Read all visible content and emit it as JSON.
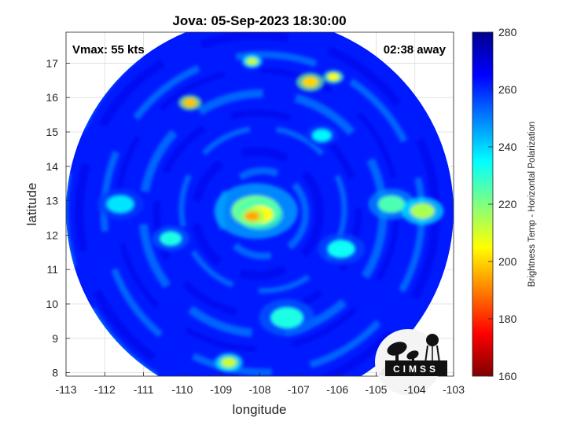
{
  "chart_data": {
    "type": "heatmap",
    "title": "Jova: 05-Sep-2023 18:30:00",
    "xlabel": "longitude",
    "ylabel": "latitude",
    "xlim": [
      -113,
      -103
    ],
    "ylim": [
      7.9,
      17.9
    ],
    "xticks": [
      -113,
      -112,
      -111,
      -110,
      -109,
      -108,
      -107,
      -106,
      -105,
      -104,
      -103
    ],
    "yticks": [
      8,
      9,
      10,
      11,
      12,
      13,
      14,
      15,
      16,
      17
    ],
    "grid": true,
    "colorbar": {
      "label": "Brightness Temp - Horizontal Polarization",
      "range": [
        160,
        280
      ],
      "ticks": [
        160,
        180,
        200,
        220,
        240,
        260,
        280
      ],
      "colormap": "jet"
    },
    "swath": {
      "center_lon": -108.0,
      "center_lat": 12.7,
      "radius_deg": 5.0
    },
    "background_temp": 262,
    "features": [
      {
        "lon": -108.2,
        "lat": 12.55,
        "temp": 195,
        "spread": 0.28
      },
      {
        "lon": -108.0,
        "lat": 12.6,
        "temp": 205,
        "spread": 0.5
      },
      {
        "lon": -108.1,
        "lat": 12.7,
        "temp": 222,
        "spread": 0.9
      },
      {
        "lon": -109.8,
        "lat": 15.85,
        "temp": 198,
        "spread": 0.25
      },
      {
        "lon": -108.2,
        "lat": 17.05,
        "temp": 212,
        "spread": 0.22
      },
      {
        "lon": -106.7,
        "lat": 16.45,
        "temp": 200,
        "spread": 0.3
      },
      {
        "lon": -106.1,
        "lat": 16.6,
        "temp": 205,
        "spread": 0.22
      },
      {
        "lon": -103.8,
        "lat": 12.7,
        "temp": 215,
        "spread": 0.45
      },
      {
        "lon": -104.6,
        "lat": 12.9,
        "temp": 226,
        "spread": 0.5
      },
      {
        "lon": -108.8,
        "lat": 8.3,
        "temp": 212,
        "spread": 0.3
      },
      {
        "lon": -107.3,
        "lat": 9.6,
        "temp": 232,
        "spread": 0.6
      },
      {
        "lon": -105.9,
        "lat": 11.6,
        "temp": 234,
        "spread": 0.5
      },
      {
        "lon": -110.3,
        "lat": 11.9,
        "temp": 232,
        "spread": 0.4
      },
      {
        "lon": -111.6,
        "lat": 12.9,
        "temp": 238,
        "spread": 0.5
      },
      {
        "lon": -106.4,
        "lat": 14.9,
        "temp": 236,
        "spread": 0.35
      }
    ]
  },
  "annotations": {
    "vmax": "Vmax: 55 kts",
    "time_away": "02:38 away"
  },
  "logo": {
    "text": "CIMSS"
  }
}
